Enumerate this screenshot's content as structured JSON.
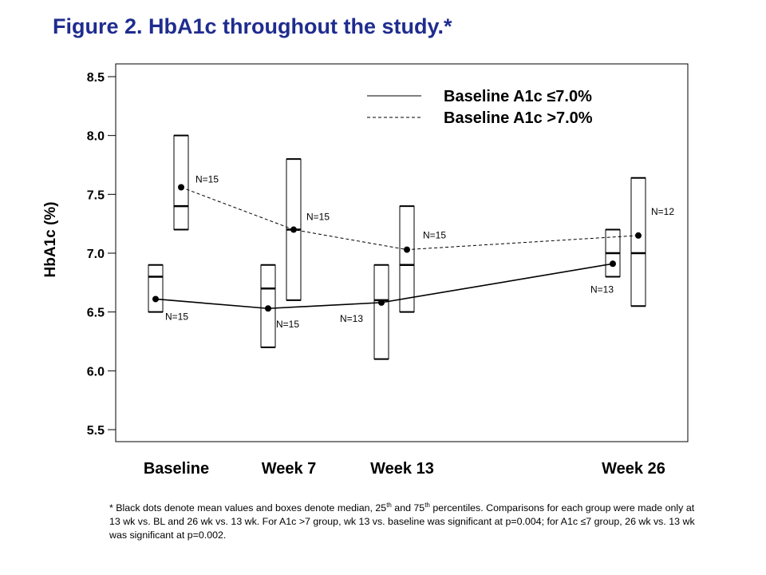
{
  "title": "Figure 2. HbA1c throughout the study.*",
  "footnote": {
    "line1_pre": "* Black dots denote mean values and boxes denote median, 25",
    "sup1": "th",
    "line1_mid": " and 75",
    "sup2": "th",
    "line1_post": " percentiles. Comparisons for each group were made only at 13 wk vs. BL and 26 wk vs. 13 wk. For A1c >7 group, wk 13 vs. baseline was significant at p=0.004; for A1c ≤7 group, 26 wk vs. 13 wk was significant at p=0.002."
  },
  "chart_data": {
    "type": "box",
    "title": "Figure 2. HbA1c throughout the study.*",
    "ylabel": "HbA1c (%)",
    "xlabel": "",
    "ylim": [
      5.5,
      8.5
    ],
    "yticks": [
      "5.5",
      "6.0",
      "6.5",
      "7.0",
      "7.5",
      "8.0",
      "8.5"
    ],
    "grid": false,
    "legend_position": "top-right",
    "categories": [
      "Baseline",
      "Week 7",
      "Week 13",
      "Week 26"
    ],
    "series": [
      {
        "name": "Baseline A1c ≤7.0%",
        "line_style": "solid",
        "points": [
          {
            "category": "Baseline",
            "q1": 6.5,
            "median": 6.8,
            "q3": 6.9,
            "mean": 6.61,
            "n": "N=15"
          },
          {
            "category": "Week 7",
            "q1": 6.2,
            "median": 6.7,
            "q3": 6.9,
            "mean": 6.53,
            "n": "N=15"
          },
          {
            "category": "Week 13",
            "q1": 6.1,
            "median": 6.6,
            "q3": 6.9,
            "mean": 6.58,
            "n": "N=13"
          },
          {
            "category": "Week 26",
            "q1": 6.8,
            "median": 7.0,
            "q3": 7.2,
            "mean": 6.91,
            "n": "N=13"
          }
        ]
      },
      {
        "name": "Baseline A1c >7.0%",
        "line_style": "dashed",
        "points": [
          {
            "category": "Baseline",
            "q1": 7.2,
            "median": 7.4,
            "q3": 8.0,
            "mean": 7.56,
            "n": "N=15"
          },
          {
            "category": "Week 7",
            "q1": 6.6,
            "median": 7.2,
            "q3": 7.8,
            "mean": 7.2,
            "n": "N=15"
          },
          {
            "category": "Week 13",
            "q1": 6.5,
            "median": 6.9,
            "q3": 7.4,
            "mean": 7.03,
            "n": "N=15"
          },
          {
            "category": "Week 26",
            "q1": 6.55,
            "median": 7.0,
            "q3": 7.64,
            "mean": 7.15,
            "n": "N=12"
          }
        ]
      }
    ]
  }
}
